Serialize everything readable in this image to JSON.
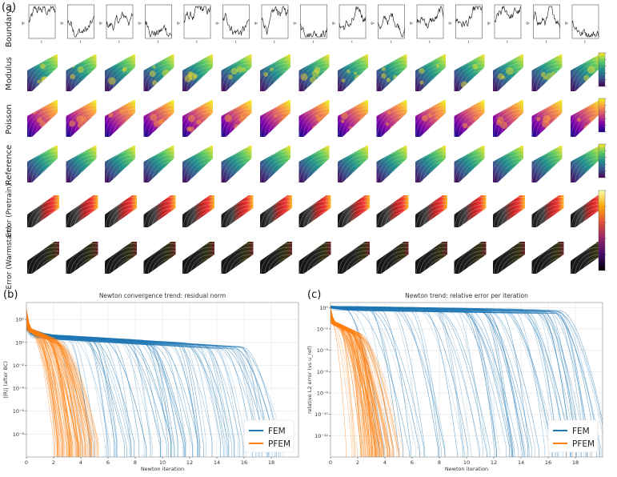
{
  "panel_labels": {
    "a": "(a)",
    "b": "(b)",
    "c": "(c)"
  },
  "row_labels": [
    "Boundary",
    "Modulus",
    "Poisson",
    "Reference",
    "Error (Pretrain)",
    "Error (Warmstart)"
  ],
  "boundary_plot": {
    "ylabel": "g₀",
    "xlabel": "t"
  },
  "colors": {
    "fem": "#1f77b4",
    "pfem": "#ff7f0e"
  },
  "chart_data": [
    {
      "type": "line",
      "title": "Newton convergence trend: residual norm",
      "xlabel": "Newton iteration",
      "ylabel": "||R|| (after BC)",
      "yscale": "log",
      "xlim": [
        0,
        20
      ],
      "ylim": [
        1e-10,
        3000.0
      ],
      "x_ticks": [
        0,
        2,
        4,
        6,
        8,
        10,
        12,
        14,
        16,
        18
      ],
      "y_ticks": [
        {
          "label": "10²",
          "exp": 2
        },
        {
          "label": "10⁰",
          "exp": 0
        },
        {
          "label": "10⁻²",
          "exp": -2
        },
        {
          "label": "10⁻⁴",
          "exp": -4
        },
        {
          "label": "10⁻⁶",
          "exp": -6
        },
        {
          "label": "10⁻⁸",
          "exp": -8
        }
      ],
      "legend": {
        "position": "lower-right",
        "entries": [
          "FEM",
          "PFEM"
        ]
      },
      "series": [
        {
          "name": "FEM",
          "start_exp": 1.25,
          "plateau_exp": 0.6,
          "final_exp": -8.9,
          "plateau_slope": -0.07,
          "drop_start_range": [
            2,
            16
          ],
          "drop_length_range": [
            1.5,
            3.5
          ],
          "count": 90
        },
        {
          "name": "PFEM",
          "start_exp": 2.8,
          "plateau_exp": 1.2,
          "final_exp": -8.9,
          "plateau_slope": -0.5,
          "drop_start_range": [
            0,
            2.5
          ],
          "drop_length_range": [
            1.3,
            3.2
          ],
          "count": 90
        }
      ]
    },
    {
      "type": "line",
      "title": "Newton trend: relative error per iteration",
      "xlabel": "Newton iteration",
      "ylabel": "relative L2 error (vs u_ref)",
      "yscale": "log",
      "xlim": [
        0,
        20
      ],
      "ylim": [
        1e-14,
        3
      ],
      "x_ticks": [
        0,
        2,
        4,
        6,
        8,
        10,
        12,
        14,
        16,
        18
      ],
      "y_ticks": [
        {
          "label": "10⁰",
          "exp": 0
        },
        {
          "label": "10⁻²",
          "exp": -2
        },
        {
          "label": "10⁻⁴",
          "exp": -4
        },
        {
          "label": "10⁻⁶",
          "exp": -6
        },
        {
          "label": "10⁻⁸",
          "exp": -8
        },
        {
          "label": "10⁻¹⁰",
          "exp": -10
        },
        {
          "label": "10⁻¹²",
          "exp": -12
        }
      ],
      "legend": {
        "position": "lower-right",
        "entries": [
          "FEM",
          "PFEM"
        ]
      },
      "series": [
        {
          "name": "FEM",
          "start_exp": 0.05,
          "plateau_exp": -0.05,
          "final_exp": -13.5,
          "plateau_slope": -0.02,
          "drop_start_range": [
            1,
            17
          ],
          "drop_length_range": [
            2,
            4
          ],
          "count": 90
        },
        {
          "name": "PFEM",
          "start_exp": -0.1,
          "plateau_exp": -1.3,
          "final_exp": -13.5,
          "plateau_slope": -0.6,
          "drop_start_range": [
            0,
            2.2
          ],
          "drop_length_range": [
            0.8,
            3.4
          ],
          "count": 90
        }
      ]
    }
  ]
}
